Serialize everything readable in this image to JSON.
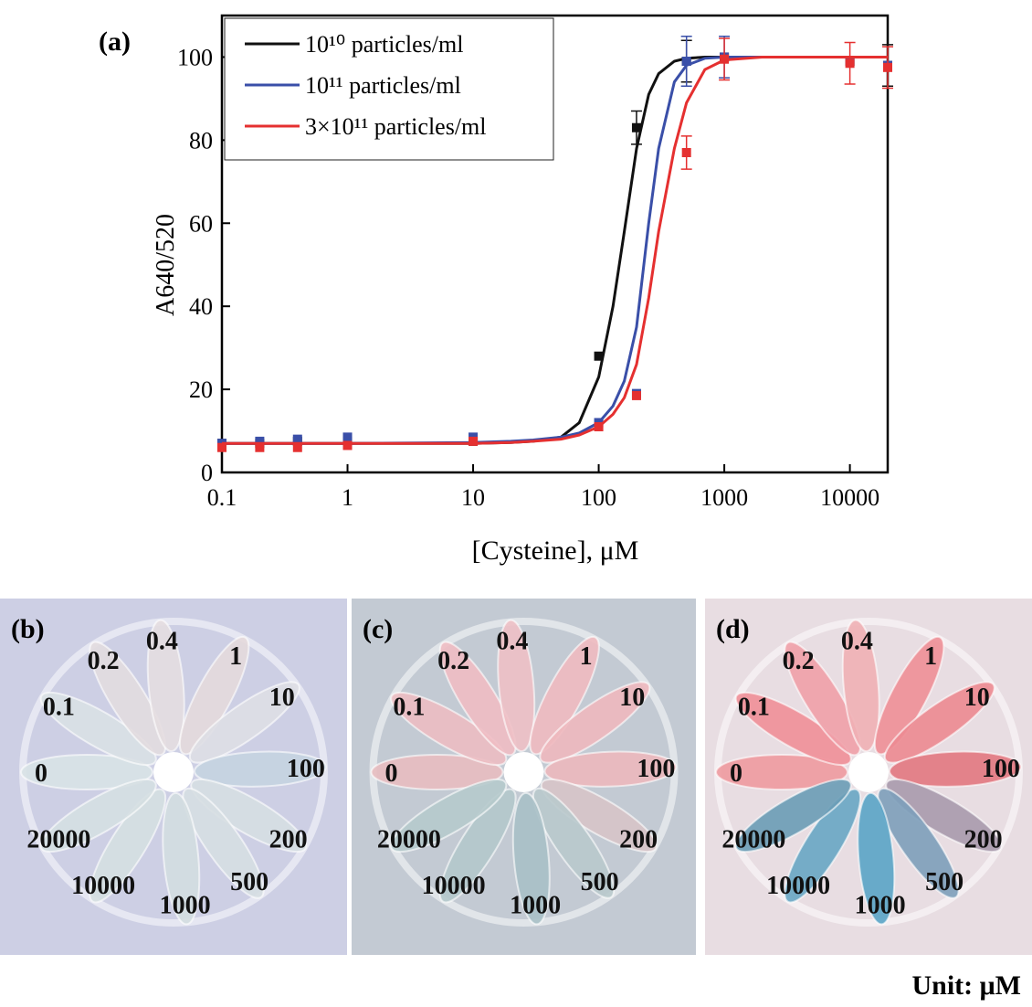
{
  "chart_data": {
    "type": "scatter",
    "panel_label": "(a)",
    "xlabel": "[Cysteine], μM",
    "ylabel": "A640/520",
    "xscale": "log",
    "xlim": [
      0.1,
      20000
    ],
    "ylim": [
      0,
      110
    ],
    "xticks": [
      0.1,
      1,
      10,
      100,
      1000,
      10000
    ],
    "yticks": [
      0,
      20,
      40,
      60,
      80,
      100
    ],
    "legend": "upper left",
    "x": [
      0.1,
      0.2,
      0.4,
      1,
      10,
      100,
      200,
      500,
      1000,
      10000,
      20000
    ],
    "fit_x": [
      0.1,
      1,
      10,
      20,
      30,
      50,
      70,
      100,
      130,
      160,
      200,
      250,
      300,
      400,
      500,
      700,
      1000,
      2000,
      20000
    ],
    "series": [
      {
        "name": "10¹⁰ particles/ml",
        "color": "#111111",
        "values": [
          7,
          7,
          7.5,
          7.5,
          7.5,
          28,
          83,
          99,
          100,
          99,
          98
        ],
        "errors": [
          null,
          null,
          null,
          null,
          null,
          null,
          4,
          5,
          null,
          null,
          5
        ],
        "fit": [
          7,
          7,
          7,
          7.2,
          7.5,
          8.5,
          12,
          23,
          40,
          58,
          78,
          91,
          96,
          99,
          99.7,
          100,
          100,
          100,
          100
        ]
      },
      {
        "name": "10¹¹ particles/ml",
        "color": "#3a4fa8",
        "values": [
          7,
          7.5,
          8,
          8.5,
          8.5,
          12,
          19,
          99,
          100,
          99,
          98
        ],
        "errors": [
          null,
          null,
          null,
          null,
          null,
          null,
          null,
          6,
          5,
          null,
          null
        ],
        "fit": [
          7,
          7,
          7.2,
          7.5,
          7.8,
          8.5,
          9.5,
          12,
          16,
          22,
          35,
          60,
          78,
          94,
          98,
          99.7,
          100,
          100,
          100
        ]
      },
      {
        "name": "3×10¹¹ particles/ml",
        "color": "#e53030",
        "values": [
          6,
          6,
          6,
          6.5,
          7.5,
          11,
          18.5,
          77,
          99.5,
          98.5,
          97.5
        ],
        "errors": [
          null,
          null,
          null,
          null,
          null,
          null,
          null,
          4,
          5,
          5,
          5
        ],
        "fit": [
          7,
          7,
          7,
          7.2,
          7.5,
          8,
          9,
          11,
          14,
          18,
          26,
          42,
          58,
          78,
          89,
          97,
          99.3,
          100,
          100
        ]
      }
    ]
  },
  "photos": {
    "unit": "Unit: μM",
    "panels": [
      {
        "label": "(b)",
        "background": "#cdcfe4",
        "tubes": [
          "0",
          "0.1",
          "0.2",
          "0.4",
          "1",
          "10",
          "100",
          "200",
          "500",
          "1000",
          "10000",
          "20000"
        ],
        "tube_colors": [
          "#d8e2e6",
          "#d9e0e4",
          "#e2dcdf",
          "#e4dde0",
          "#e4d9dc",
          "#dedee4",
          "#c5d3e0",
          "#d6dee2",
          "#d6dee2",
          "#d3dde0",
          "#d5dfe1",
          "#d5dfe2"
        ]
      },
      {
        "label": "(c)",
        "background": "#c3cad3",
        "tubes": [
          "0",
          "0.1",
          "0.2",
          "0.4",
          "1",
          "10",
          "100",
          "200",
          "500",
          "1000",
          "10000",
          "20000"
        ],
        "tube_colors": [
          "#e8bcc0",
          "#ecbcc2",
          "#efbdc3",
          "#eec0c5",
          "#efbac0",
          "#eeb8be",
          "#ecb8bd",
          "#d7c4c8",
          "#b9c9cc",
          "#a9c0c6",
          "#b4c8cb",
          "#b6cacc"
        ]
      },
      {
        "label": "(d)",
        "background": "#e8dde2",
        "tubes": [
          "0",
          "0.1",
          "0.2",
          "0.4",
          "1",
          "10",
          "100",
          "200",
          "500",
          "1000",
          "10000",
          "20000"
        ],
        "tube_colors": [
          "#ee9aa0",
          "#ef8f98",
          "#f0a0a8",
          "#f0b0b5",
          "#ee8f97",
          "#ec8991",
          "#e27881",
          "#a89aad",
          "#7d9fba",
          "#5aa4c7",
          "#68a6c4",
          "#6a9cb6"
        ]
      }
    ]
  }
}
